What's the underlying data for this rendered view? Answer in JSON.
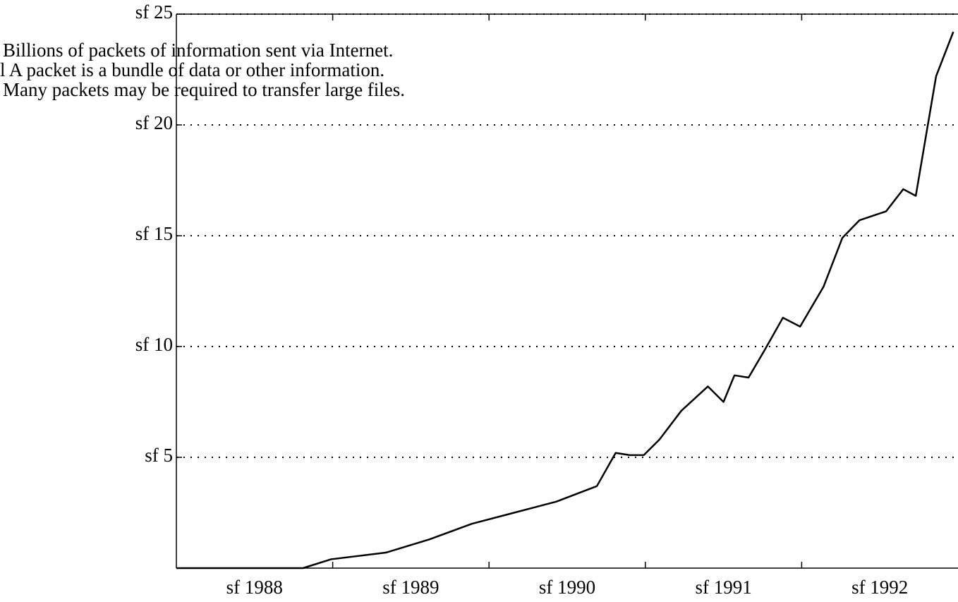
{
  "chart_data": {
    "type": "line",
    "annotations": [
      "Billions of packets of information sent via Internet.",
      "l A packet is a bundle of data or other information.",
      "Many packets may be required to transfer large files."
    ],
    "x": [
      1988.0,
      1988.81,
      1988.99,
      1989.34,
      1989.62,
      1989.89,
      1990.16,
      1990.43,
      1990.69,
      1990.81,
      1990.9,
      1990.99,
      1991.09,
      1991.23,
      1991.4,
      1991.5,
      1991.57,
      1991.66,
      1991.76,
      1991.88,
      1991.99,
      1992.14,
      1992.26,
      1992.37,
      1992.54,
      1992.65,
      1992.73,
      1992.86,
      1992.97
    ],
    "series": [
      {
        "color": "#000000",
        "values": [
          0,
          0,
          0.4,
          0.7,
          1.3,
          2.0,
          2.5,
          3.0,
          3.7,
          5.2,
          5.1,
          5.1,
          5.8,
          7.1,
          8.2,
          7.5,
          8.7,
          8.6,
          9.8,
          11.3,
          10.9,
          12.7,
          14.9,
          15.7,
          16.1,
          17.1,
          16.8,
          22.2,
          24.2
        ]
      }
    ],
    "xlim": [
      1988,
      1993
    ],
    "xticks": [
      {
        "value": 1988.5,
        "label": "sf 1988"
      },
      {
        "value": 1989.5,
        "label": "sf 1989"
      },
      {
        "value": 1990.5,
        "label": "sf 1990"
      },
      {
        "value": 1991.5,
        "label": "sf 1991"
      },
      {
        "value": 1992.5,
        "label": "sf 1992"
      }
    ],
    "ylim": [
      0,
      25
    ],
    "yticks": [
      {
        "value": 5,
        "label": "sf 5"
      },
      {
        "value": 10,
        "label": "sf 10"
      },
      {
        "value": 15,
        "label": "sf 15"
      },
      {
        "value": 20,
        "label": "sf 20"
      },
      {
        "value": 25,
        "label": "sf 25"
      }
    ],
    "grid": true
  }
}
